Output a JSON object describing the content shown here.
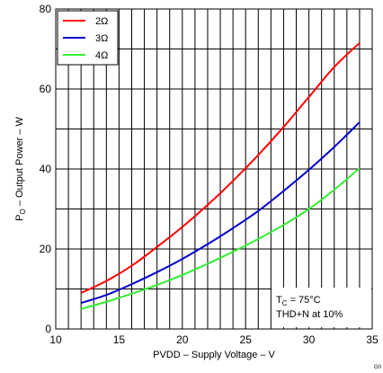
{
  "chart_data": {
    "type": "line",
    "xlabel": "PVDD – Supply Voltage – V",
    "ylabel": "P",
    "ylabel_sub": "O",
    "ylabel_rest": " – Output Power – W",
    "xlim": [
      10,
      35
    ],
    "ylim": [
      0,
      80
    ],
    "x_ticks": [
      10,
      15,
      20,
      25,
      30,
      35
    ],
    "y_ticks": [
      0,
      20,
      40,
      60,
      80
    ],
    "x_minor_step": 1,
    "y_minor_step": 10,
    "grid": true,
    "legend_position": "top-left",
    "series": [
      {
        "name": "2Ω",
        "color": "#ff0000",
        "x": [
          12,
          14,
          16,
          18,
          20,
          22,
          24,
          26,
          28,
          30,
          32,
          34
        ],
        "y": [
          9,
          12,
          15.8,
          20.5,
          25.5,
          31,
          37,
          43.5,
          50.5,
          58,
          65.5,
          71.5
        ]
      },
      {
        "name": "3Ω",
        "color": "#0000cc",
        "x": [
          12,
          14,
          16,
          18,
          20,
          22,
          24,
          26,
          28,
          30,
          32,
          34
        ],
        "y": [
          6.5,
          8.5,
          11.2,
          14.2,
          17.5,
          21.2,
          25.2,
          29.5,
          34.5,
          39.8,
          45.5,
          51.7
        ]
      },
      {
        "name": "4Ω",
        "color": "#33ee33",
        "x": [
          12,
          14,
          16,
          18,
          20,
          22,
          24,
          26,
          28,
          30,
          32,
          34
        ],
        "y": [
          5,
          6.8,
          8.8,
          11,
          13.5,
          16.3,
          19.3,
          22.5,
          26,
          30,
          34.8,
          40.2
        ]
      }
    ],
    "annotations": {
      "temp_main": "T",
      "temp_sub": "C",
      "temp_rest": " = 75°C",
      "thd": "THD+N at 10%"
    },
    "figure_code": "G0"
  }
}
